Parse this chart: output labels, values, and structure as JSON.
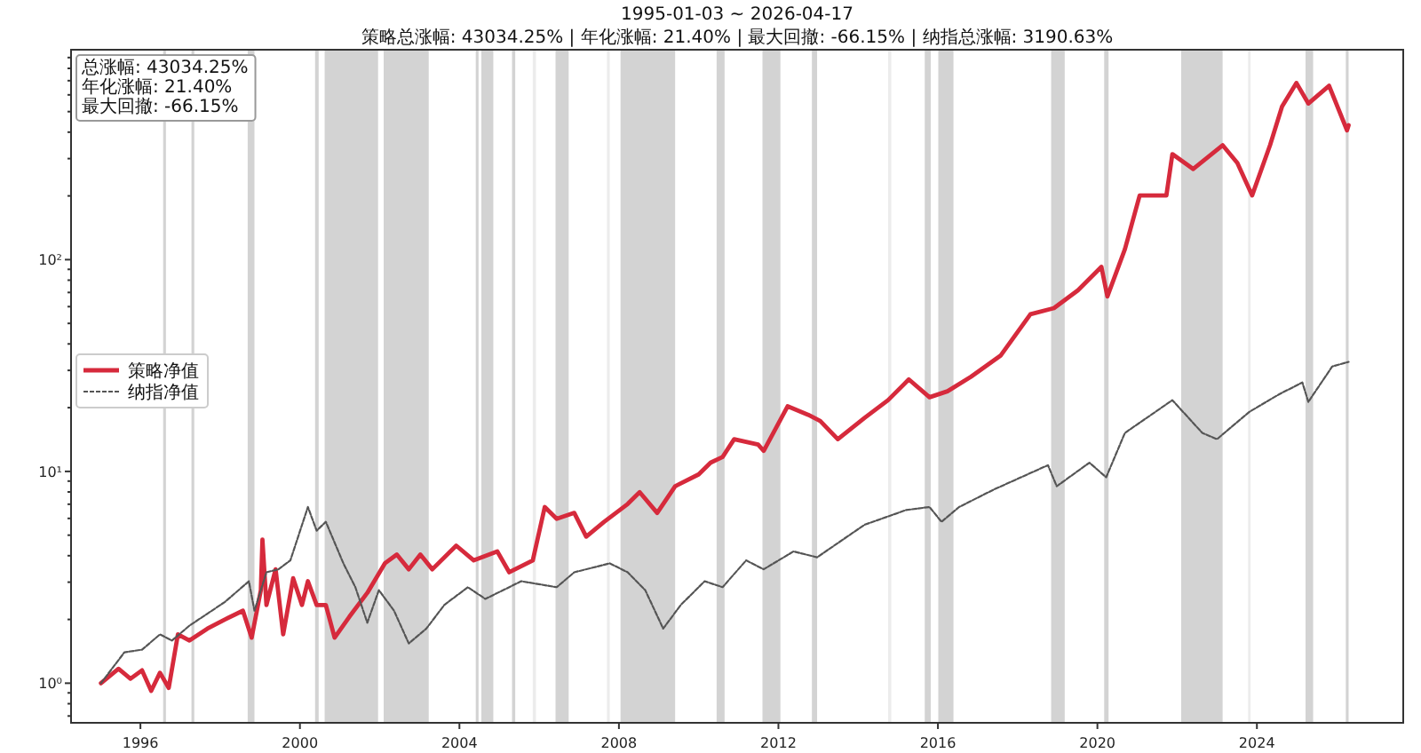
{
  "chart_data": {
    "type": "line",
    "title": "1995-01-03 ~ 2026-04-17",
    "subtitle": "策略总涨幅: 43034.25% | 年化涨幅: 21.40% | 最大回撤: -66.15% | 纳指总涨幅: 3190.63%",
    "annotations": [
      "总涨幅: 43034.25%",
      "年化涨幅: 21.40%",
      "最大回撤: -66.15%"
    ],
    "log": true,
    "grid": false,
    "legend": "left",
    "xlim": [
      1994.26,
      2027.67
    ],
    "xticks": [
      1996,
      2000,
      2004,
      2008,
      2012,
      2016,
      2020,
      2024
    ],
    "ylim": [
      0.65,
      980
    ],
    "yticks": [
      {
        "value": 0.7,
        "label": null
      },
      {
        "value": 0.8,
        "label": null
      },
      {
        "value": 0.9,
        "label": null
      },
      {
        "value": 1,
        "label": "10⁰"
      },
      {
        "value": 2,
        "label": null
      },
      {
        "value": 3,
        "label": null
      },
      {
        "value": 4,
        "label": null
      },
      {
        "value": 5,
        "label": null
      },
      {
        "value": 6,
        "label": null
      },
      {
        "value": 7,
        "label": null
      },
      {
        "value": 8,
        "label": null
      },
      {
        "value": 9,
        "label": null
      },
      {
        "value": 10,
        "label": "10¹"
      },
      {
        "value": 20,
        "label": null
      },
      {
        "value": 30,
        "label": null
      },
      {
        "value": 40,
        "label": null
      },
      {
        "value": 50,
        "label": null
      },
      {
        "value": 60,
        "label": null
      },
      {
        "value": 70,
        "label": null
      },
      {
        "value": 80,
        "label": null
      },
      {
        "value": 90,
        "label": null
      },
      {
        "value": 100,
        "label": "10²"
      },
      {
        "value": 200,
        "label": null
      },
      {
        "value": 300,
        "label": null
      },
      {
        "value": 400,
        "label": null
      },
      {
        "value": 500,
        "label": null
      },
      {
        "value": 600,
        "label": null
      },
      {
        "value": 700,
        "label": null
      },
      {
        "value": 800,
        "label": null
      },
      {
        "value": 900,
        "label": null
      }
    ],
    "bands": [
      {
        "axis": "x",
        "from": 1996.57,
        "to": 1996.64,
        "color": "#d3d3d3"
      },
      {
        "axis": "x",
        "from": 1997.28,
        "to": 1997.35,
        "color": "#d3d3d3"
      },
      {
        "axis": "x",
        "from": 1998.69,
        "to": 1998.86,
        "color": "#d3d3d3"
      },
      {
        "axis": "x",
        "from": 2000.38,
        "to": 2000.47,
        "color": "#d3d3d3"
      },
      {
        "axis": "x",
        "from": 2000.62,
        "to": 2001.96,
        "color": "#d3d3d3"
      },
      {
        "axis": "x",
        "from": 2002.1,
        "to": 2003.23,
        "color": "#d3d3d3"
      },
      {
        "axis": "x",
        "from": 2004.41,
        "to": 2004.48,
        "color": "#d3d3d3"
      },
      {
        "axis": "x",
        "from": 2004.55,
        "to": 2004.85,
        "color": "#d3d3d3"
      },
      {
        "axis": "x",
        "from": 2005.32,
        "to": 2005.4,
        "color": "#d3d3d3"
      },
      {
        "axis": "x",
        "from": 2005.84,
        "to": 2005.92,
        "color": "#ececec"
      },
      {
        "axis": "x",
        "from": 2006.41,
        "to": 2006.74,
        "color": "#d3d3d3"
      },
      {
        "axis": "x",
        "from": 2007.7,
        "to": 2007.77,
        "color": "#ececec"
      },
      {
        "axis": "x",
        "from": 2008.04,
        "to": 2009.41,
        "color": "#d3d3d3"
      },
      {
        "axis": "x",
        "from": 2010.45,
        "to": 2010.65,
        "color": "#d3d3d3"
      },
      {
        "axis": "x",
        "from": 2011.6,
        "to": 2012.05,
        "color": "#d3d3d3"
      },
      {
        "axis": "x",
        "from": 2012.84,
        "to": 2012.97,
        "color": "#d3d3d3"
      },
      {
        "axis": "x",
        "from": 2014.75,
        "to": 2014.83,
        "color": "#ececec"
      },
      {
        "axis": "x",
        "from": 2015.67,
        "to": 2015.82,
        "color": "#d3d3d3"
      },
      {
        "axis": "x",
        "from": 2016.01,
        "to": 2016.39,
        "color": "#d3d3d3"
      },
      {
        "axis": "x",
        "from": 2018.84,
        "to": 2019.18,
        "color": "#d3d3d3"
      },
      {
        "axis": "x",
        "from": 2020.17,
        "to": 2020.28,
        "color": "#d3d3d3"
      },
      {
        "axis": "x",
        "from": 2022.1,
        "to": 2023.14,
        "color": "#d3d3d3"
      },
      {
        "axis": "x",
        "from": 2023.78,
        "to": 2023.84,
        "color": "#ececec"
      },
      {
        "axis": "x",
        "from": 2025.22,
        "to": 2025.41,
        "color": "#d3d3d3"
      },
      {
        "axis": "x",
        "from": 2026.23,
        "to": 2026.3,
        "color": "#d3d3d3"
      }
    ],
    "series": [
      {
        "name": "策略净值",
        "color": "#d62a3c",
        "line_style": "solid",
        "x": [
          1995.01,
          1995.45,
          1995.75,
          1996.04,
          1996.27,
          1996.49,
          1996.71,
          1996.94,
          1997.23,
          1997.68,
          1998.12,
          1998.57,
          1998.79,
          1999.02,
          1999.06,
          1999.16,
          1999.39,
          1999.58,
          1999.83,
          2000.05,
          2000.2,
          2000.42,
          2000.65,
          2000.87,
          2001.24,
          2001.69,
          2002.13,
          2002.43,
          2002.73,
          2003.02,
          2003.32,
          2003.92,
          2004.36,
          2004.95,
          2005.25,
          2005.84,
          2006.14,
          2006.44,
          2006.88,
          2007.18,
          2007.63,
          2008.22,
          2008.52,
          2008.96,
          2009.41,
          2010.0,
          2010.3,
          2010.6,
          2010.89,
          2011.49,
          2011.63,
          2012.23,
          2012.75,
          2013.05,
          2013.49,
          2014.16,
          2014.75,
          2015.27,
          2015.79,
          2016.24,
          2016.83,
          2017.57,
          2018.32,
          2018.91,
          2019.51,
          2020.1,
          2020.25,
          2020.69,
          2021.06,
          2021.73,
          2021.88,
          2022.4,
          2023.14,
          2023.51,
          2023.88,
          2024.33,
          2024.63,
          2024.99,
          2025.29,
          2025.81,
          2026.26,
          2026.3
        ],
        "values": [
          1.0,
          1.17,
          1.05,
          1.15,
          0.92,
          1.12,
          0.95,
          1.7,
          1.59,
          1.81,
          2.0,
          2.2,
          1.64,
          2.75,
          4.77,
          2.34,
          3.45,
          1.7,
          3.13,
          2.34,
          3.03,
          2.34,
          2.34,
          1.64,
          2.06,
          2.67,
          3.68,
          4.05,
          3.45,
          4.05,
          3.45,
          4.46,
          3.8,
          4.19,
          3.34,
          3.8,
          6.79,
          5.97,
          6.37,
          4.92,
          5.78,
          7.02,
          7.98,
          6.37,
          8.51,
          9.68,
          11.0,
          11.7,
          14.2,
          13.4,
          12.5,
          20.3,
          18.5,
          17.3,
          14.2,
          17.9,
          21.7,
          27.2,
          22.4,
          23.9,
          28.0,
          35.2,
          55.2,
          59.0,
          71.6,
          92.5,
          67.0,
          112,
          201,
          201,
          315,
          268,
          347,
          286,
          201,
          347,
          528,
          683,
          546,
          662,
          408,
          431
        ]
      },
      {
        "name": "纳指净值",
        "color": "#555555",
        "line_style": "dashed",
        "x": [
          1995.01,
          1995.6,
          1996.04,
          1996.49,
          1996.79,
          1997.23,
          1997.68,
          1998.12,
          1998.72,
          1998.86,
          1999.16,
          1999.46,
          1999.76,
          2000.2,
          2000.42,
          2000.65,
          2001.09,
          2001.39,
          2001.69,
          2001.98,
          2002.36,
          2002.73,
          2003.17,
          2003.62,
          2004.21,
          2004.65,
          2005.55,
          2006.44,
          2006.88,
          2007.77,
          2008.22,
          2008.66,
          2009.11,
          2009.55,
          2010.15,
          2010.6,
          2011.19,
          2011.63,
          2012.38,
          2012.97,
          2014.16,
          2015.2,
          2015.79,
          2016.09,
          2016.53,
          2017.42,
          2018.76,
          2018.98,
          2019.8,
          2020.22,
          2020.69,
          2021.88,
          2022.63,
          2023.0,
          2023.81,
          2024.55,
          2025.14,
          2025.29,
          2025.89,
          2026.3
        ],
        "values": [
          1.0,
          1.4,
          1.44,
          1.7,
          1.59,
          1.87,
          2.13,
          2.42,
          3.03,
          2.2,
          3.34,
          3.45,
          3.8,
          6.79,
          5.25,
          5.78,
          3.68,
          2.84,
          1.93,
          2.75,
          2.2,
          1.54,
          1.81,
          2.34,
          2.84,
          2.5,
          3.03,
          2.84,
          3.34,
          3.68,
          3.34,
          2.75,
          1.81,
          2.34,
          3.03,
          2.84,
          3.8,
          3.45,
          4.19,
          3.93,
          5.6,
          6.57,
          6.79,
          5.78,
          6.79,
          8.24,
          10.7,
          8.51,
          11.0,
          9.38,
          15.2,
          21.7,
          15.2,
          14.2,
          19.1,
          23.1,
          26.3,
          21.3,
          31.3,
          32.9
        ]
      }
    ]
  }
}
